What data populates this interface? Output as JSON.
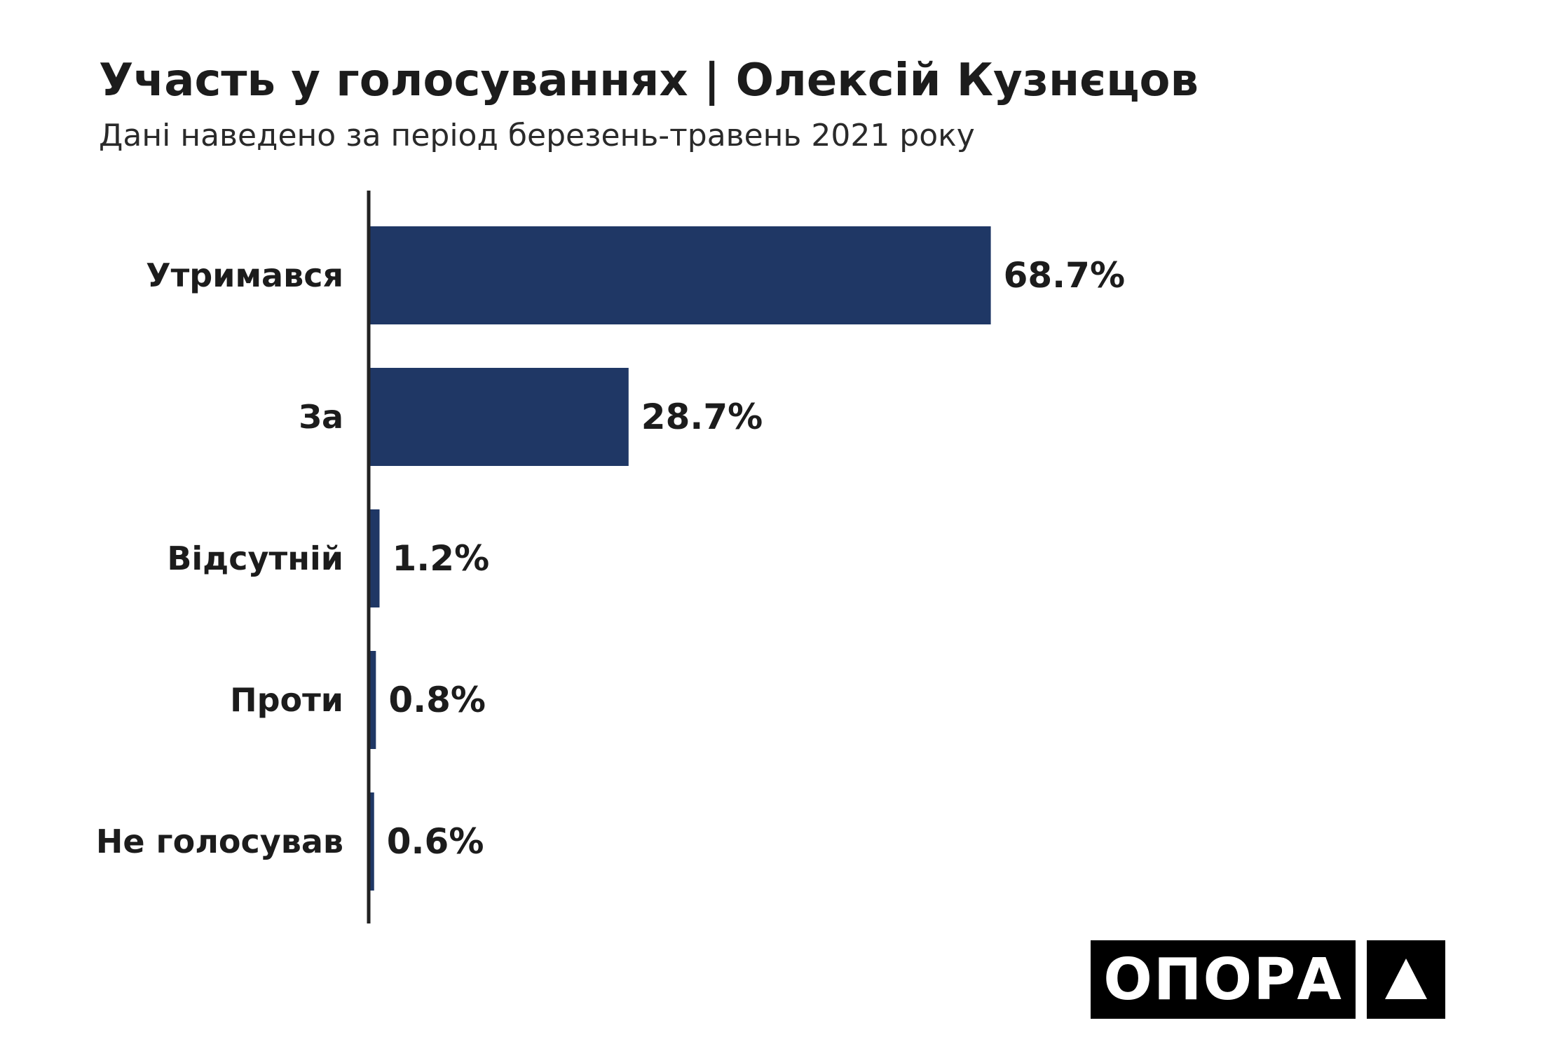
{
  "chart_data": {
    "type": "bar",
    "orientation": "horizontal",
    "title": "Участь у голосуваннях | Олексій Кузнєцов",
    "subtitle": "Дані наведено за період березень-травень 2021 року",
    "categories": [
      "Утримався",
      "За",
      "Відсутній",
      "Проти",
      "Не голосував"
    ],
    "values": [
      68.7,
      28.7,
      1.2,
      0.8,
      0.6
    ],
    "value_labels": [
      "68.7%",
      "28.7%",
      "1.2%",
      "0.8%",
      "0.6%"
    ],
    "xlabel": "",
    "ylabel": "",
    "xlim": [
      0,
      100
    ],
    "grid": false,
    "bar_color": "#1f3765",
    "axis_color": "#222222"
  },
  "logo": {
    "word": "ОПОРА"
  }
}
